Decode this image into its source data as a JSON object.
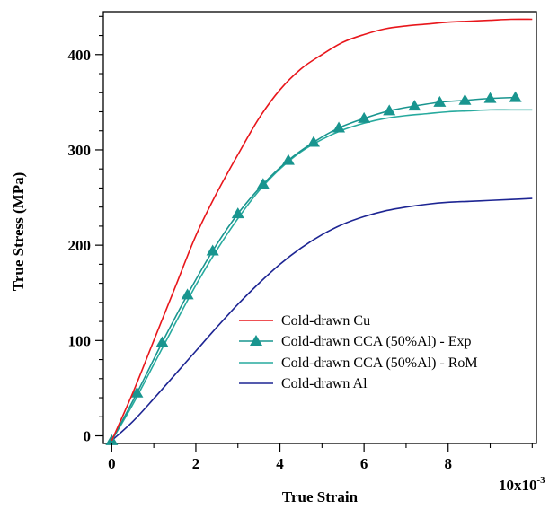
{
  "chart_data": {
    "type": "line",
    "xlabel": "True Strain",
    "ylabel": "True Stress (MPa)",
    "x_multiplier_label": "10x10",
    "x_multiplier_exponent": "-3",
    "xlim": [
      -0.0002,
      0.0101
    ],
    "ylim": [
      -8,
      445
    ],
    "x_ticks": [
      0,
      0.002,
      0.004,
      0.006,
      0.008
    ],
    "x_tick_labels": [
      "0",
      "2",
      "4",
      "6",
      "8"
    ],
    "y_ticks": [
      0,
      100,
      200,
      300,
      400
    ],
    "y_tick_labels": [
      "0",
      "100",
      "200",
      "300",
      "400"
    ],
    "grid": false,
    "legend_position": "lower-right",
    "series": [
      {
        "name": "Cold-drawn Cu",
        "color": "#e8161b",
        "marker": "none",
        "x": [
          0,
          0.0005,
          0.001,
          0.0015,
          0.002,
          0.0025,
          0.003,
          0.0035,
          0.004,
          0.0045,
          0.005,
          0.0055,
          0.006,
          0.0065,
          0.007,
          0.0075,
          0.008,
          0.0085,
          0.009,
          0.0095,
          0.01
        ],
        "y": [
          -5,
          45,
          100,
          155,
          210,
          255,
          295,
          333,
          363,
          385,
          400,
          413,
          421,
          427,
          430,
          432,
          434,
          435,
          436,
          437,
          437
        ]
      },
      {
        "name": "Cold-drawn CCA (50%Al) - Exp",
        "color": "#19958f",
        "marker": "triangle",
        "x": [
          0,
          0.0006,
          0.0012,
          0.0018,
          0.0024,
          0.003,
          0.0036,
          0.0042,
          0.0048,
          0.0054,
          0.006,
          0.0066,
          0.0072,
          0.0078,
          0.0084,
          0.009,
          0.0096
        ],
        "y": [
          -5,
          45,
          98,
          148,
          194,
          233,
          264,
          289,
          308,
          323,
          333,
          341,
          346,
          350,
          352,
          354,
          355
        ]
      },
      {
        "name": "Cold-drawn CCA (50%Al) - RoM",
        "color": "#27aa9e",
        "marker": "none",
        "x": [
          0,
          0.0005,
          0.001,
          0.0015,
          0.002,
          0.0025,
          0.003,
          0.0035,
          0.004,
          0.0045,
          0.005,
          0.0055,
          0.006,
          0.0065,
          0.007,
          0.0075,
          0.008,
          0.0085,
          0.009,
          0.0095,
          0.01
        ],
        "y": [
          -5,
          33,
          75,
          117,
          158,
          195,
          228,
          257,
          280,
          298,
          311,
          321,
          328,
          333,
          336,
          338,
          340,
          341,
          342,
          342,
          342
        ]
      },
      {
        "name": "Cold-drawn Al",
        "color": "#1d2593",
        "marker": "none",
        "x": [
          0,
          0.0005,
          0.001,
          0.0015,
          0.002,
          0.0025,
          0.003,
          0.0035,
          0.004,
          0.0045,
          0.005,
          0.0055,
          0.006,
          0.0065,
          0.007,
          0.0075,
          0.008,
          0.0085,
          0.009,
          0.0095,
          0.01
        ],
        "y": [
          -5,
          15,
          39,
          64,
          89,
          114,
          138,
          160,
          180,
          197,
          211,
          222,
          230,
          236,
          240,
          243,
          245,
          246,
          247,
          248,
          249
        ]
      }
    ]
  }
}
